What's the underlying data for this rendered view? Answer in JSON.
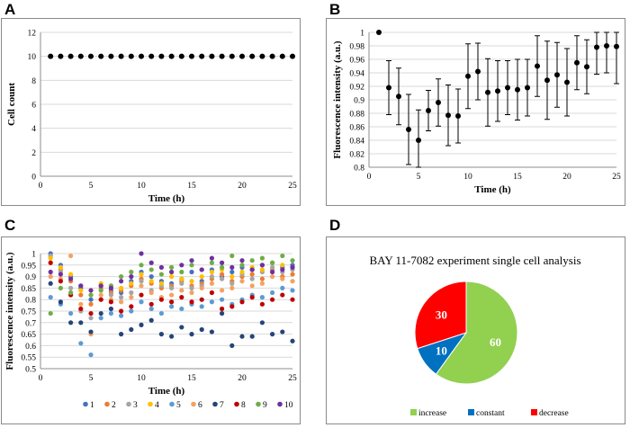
{
  "panels": {
    "a": "A",
    "b": "B",
    "c": "C",
    "d": "D"
  },
  "chart_data": [
    {
      "panel": "A",
      "type": "scatter",
      "title": "",
      "xlabel": "Time (h)",
      "ylabel": "Cell count",
      "xlim": [
        0,
        25
      ],
      "ylim": [
        0,
        12
      ],
      "xticks": [
        0,
        5,
        10,
        15,
        20,
        25
      ],
      "yticks": [
        0,
        2,
        4,
        6,
        8,
        10,
        12
      ],
      "x": [
        1,
        2,
        3,
        4,
        5,
        6,
        7,
        8,
        9,
        10,
        11,
        12,
        13,
        14,
        15,
        16,
        17,
        18,
        19,
        20,
        21,
        22,
        23,
        24,
        25
      ],
      "values": [
        10,
        10,
        10,
        10,
        10,
        10,
        10,
        10,
        10,
        10,
        10,
        10,
        10,
        10,
        10,
        10,
        10,
        10,
        10,
        10,
        10,
        10,
        10,
        10,
        10
      ],
      "color": "#000000"
    },
    {
      "panel": "B",
      "type": "scatter",
      "title": "",
      "xlabel": "Time (h)",
      "ylabel": "Fluorescence intensity (a.u.)",
      "xlim": [
        0,
        25
      ],
      "ylim": [
        0.8,
        1
      ],
      "xticks": [
        0,
        5,
        10,
        15,
        20,
        25
      ],
      "yticks": [
        0.8,
        0.82,
        0.84,
        0.86,
        0.88,
        0.9,
        0.92,
        0.94,
        0.96,
        0.98,
        1
      ],
      "x": [
        1,
        2,
        3,
        4,
        5,
        6,
        7,
        8,
        9,
        10,
        11,
        12,
        13,
        14,
        15,
        16,
        17,
        18,
        19,
        20,
        21,
        22,
        23,
        24,
        25
      ],
      "values": [
        1.0,
        0.918,
        0.905,
        0.856,
        0.84,
        0.884,
        0.896,
        0.877,
        0.876,
        0.935,
        0.942,
        0.911,
        0.913,
        0.918,
        0.915,
        0.918,
        0.95,
        0.929,
        0.937,
        0.926,
        0.955,
        0.949,
        0.978,
        0.98,
        0.979
      ],
      "errors": [
        0.0,
        0.04,
        0.042,
        0.052,
        0.045,
        0.03,
        0.035,
        0.045,
        0.04,
        0.048,
        0.042,
        0.05,
        0.045,
        0.04,
        0.045,
        0.042,
        0.045,
        0.058,
        0.048,
        0.05,
        0.04,
        0.04,
        0.04,
        0.04,
        0.055
      ],
      "color": "#000000"
    },
    {
      "panel": "C",
      "type": "scatter",
      "title": "",
      "xlabel": "Time (h)",
      "ylabel": "Fluorescence intensity (a.u.)",
      "xlim": [
        0,
        25
      ],
      "ylim": [
        0.5,
        1
      ],
      "xticks": [
        0,
        5,
        10,
        15,
        20,
        25
      ],
      "yticks": [
        0.5,
        0.55,
        0.6,
        0.65,
        0.7,
        0.75,
        0.8,
        0.85,
        0.9,
        0.95,
        1
      ],
      "x": [
        1,
        2,
        3,
        4,
        5,
        6,
        7,
        8,
        9,
        10,
        11,
        12,
        13,
        14,
        15,
        16,
        17,
        18,
        19,
        20,
        21,
        22,
        23,
        24,
        25
      ],
      "series": [
        {
          "name": "1",
          "color": "#4472c4",
          "values": [
            1.0,
            0.95,
            0.9,
            0.85,
            0.8,
            0.86,
            0.84,
            0.83,
            0.88,
            0.92,
            0.9,
            0.88,
            0.87,
            0.89,
            0.92,
            0.88,
            0.93,
            0.9,
            0.92,
            0.94,
            0.93,
            0.95,
            0.96,
            0.94,
            0.95
          ]
        },
        {
          "name": "2",
          "color": "#ed7d31",
          "values": [
            0.99,
            0.93,
            0.88,
            0.82,
            0.78,
            0.85,
            0.83,
            0.84,
            0.86,
            0.89,
            0.87,
            0.85,
            0.86,
            0.88,
            0.86,
            0.87,
            0.89,
            0.91,
            0.88,
            0.9,
            0.91,
            0.89,
            0.93,
            0.9,
            0.91
          ]
        },
        {
          "name": "3",
          "color": "#a5a5a5",
          "values": [
            0.99,
            0.92,
            0.85,
            0.75,
            0.72,
            0.8,
            0.82,
            0.81,
            0.83,
            0.88,
            0.84,
            0.86,
            0.85,
            0.87,
            0.85,
            0.86,
            0.9,
            0.89,
            0.87,
            0.91,
            0.89,
            0.92,
            0.94,
            0.92,
            0.93
          ]
        },
        {
          "name": "4",
          "color": "#ffc000",
          "values": [
            0.98,
            0.94,
            0.91,
            0.84,
            0.82,
            0.87,
            0.86,
            0.85,
            0.87,
            0.91,
            0.88,
            0.87,
            0.9,
            0.89,
            0.88,
            0.9,
            0.92,
            0.93,
            0.9,
            0.92,
            0.94,
            0.93,
            0.96,
            0.95,
            0.94
          ]
        },
        {
          "name": "5",
          "color": "#5b9bd5",
          "values": [
            0.81,
            0.78,
            0.74,
            0.61,
            0.56,
            0.72,
            0.74,
            0.73,
            0.75,
            0.79,
            0.76,
            0.74,
            0.77,
            0.76,
            0.78,
            0.77,
            0.79,
            0.8,
            0.78,
            0.8,
            0.82,
            0.81,
            0.83,
            0.85,
            0.84
          ]
        },
        {
          "name": "6",
          "color": "#f4a261",
          "values": [
            0.9,
            0.89,
            0.99,
            0.78,
            0.65,
            0.82,
            0.8,
            0.79,
            0.81,
            0.86,
            0.83,
            0.81,
            0.82,
            0.84,
            0.83,
            0.85,
            0.87,
            0.84,
            0.85,
            0.88,
            0.86,
            0.87,
            0.9,
            0.89,
            0.88
          ]
        },
        {
          "name": "7",
          "color": "#264478",
          "values": [
            0.87,
            0.79,
            0.7,
            0.7,
            0.66,
            0.74,
            0.76,
            0.65,
            0.67,
            0.69,
            0.71,
            0.65,
            0.64,
            0.68,
            0.65,
            0.67,
            0.66,
            0.74,
            0.6,
            0.64,
            0.64,
            0.7,
            0.65,
            0.66,
            0.62
          ]
        },
        {
          "name": "8",
          "color": "#c00000",
          "values": [
            0.96,
            0.88,
            0.82,
            0.76,
            0.74,
            0.8,
            0.79,
            0.75,
            0.77,
            0.82,
            0.78,
            0.8,
            0.79,
            0.81,
            0.79,
            0.8,
            0.83,
            0.76,
            0.77,
            0.79,
            0.81,
            0.78,
            0.8,
            0.82,
            0.8
          ]
        },
        {
          "name": "9",
          "color": "#70ad47",
          "values": [
            0.74,
            0.85,
            0.83,
            0.86,
            0.82,
            0.84,
            0.86,
            0.9,
            0.92,
            0.95,
            0.93,
            0.91,
            0.94,
            0.92,
            0.95,
            0.93,
            0.96,
            0.94,
            0.99,
            0.95,
            0.97,
            0.98,
            0.96,
            0.99,
            0.97
          ]
        },
        {
          "name": "10",
          "color": "#7030a0",
          "values": [
            0.92,
            0.91,
            0.89,
            0.86,
            0.84,
            0.86,
            0.85,
            0.88,
            0.9,
            1.0,
            0.96,
            0.94,
            0.92,
            0.95,
            0.97,
            0.93,
            0.98,
            0.96,
            0.94,
            0.97,
            0.93,
            0.95,
            0.92,
            0.93,
            0.94
          ]
        }
      ],
      "legend_position": "bottom"
    },
    {
      "panel": "D",
      "type": "pie",
      "title": "BAY 11-7082 experiment single cell analysis",
      "labels": [
        "increase",
        "constant",
        "decrease"
      ],
      "values": [
        60,
        10,
        30
      ],
      "colors": [
        "#92d050",
        "#0070c0",
        "#ff0000"
      ],
      "legend_position": "bottom"
    }
  ]
}
